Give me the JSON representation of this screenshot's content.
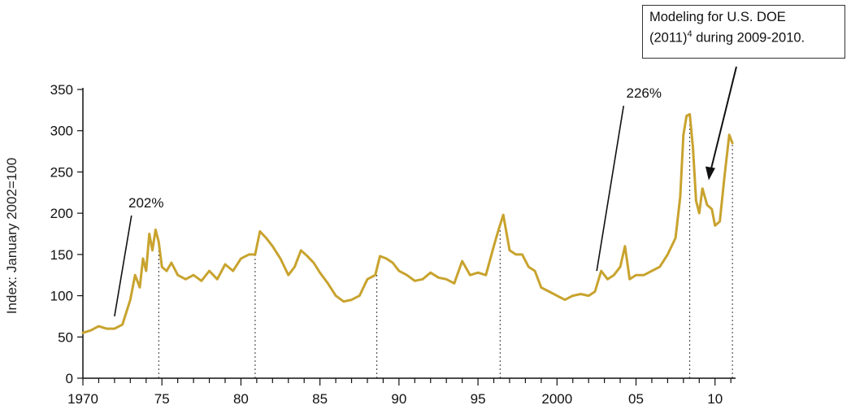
{
  "note": {
    "line1": "Modeling for U.S. DOE",
    "line2_pre": "(2011)",
    "line2_sup": "4",
    "line2_post": " during 2009-2010."
  },
  "colors": {
    "series": "#C8A32E",
    "axis": "#111111"
  },
  "chart_data": {
    "type": "line",
    "title": "",
    "xlabel": "",
    "ylabel": "Index: January 2002=100",
    "xlim": [
      1970,
      2011.3
    ],
    "ylim": [
      0,
      350
    ],
    "y_ticks": [
      0,
      50,
      100,
      150,
      200,
      250,
      300,
      350
    ],
    "x_major_ticks": [
      1970,
      1975,
      1980,
      1985,
      1990,
      1995,
      2000,
      2005,
      2010
    ],
    "x_tick_labels": [
      "1970",
      "75",
      "80",
      "85",
      "90",
      "95",
      "2000",
      "05",
      "10"
    ],
    "grid": false,
    "series": [
      {
        "x": [
          1970.0,
          1970.5,
          1971.0,
          1971.5,
          1972.0,
          1972.5,
          1973.0,
          1973.3,
          1973.6,
          1973.8,
          1974.0,
          1974.2,
          1974.4,
          1974.6,
          1974.8,
          1975.0,
          1975.3,
          1975.6,
          1976.0,
          1976.5,
          1977.0,
          1977.5,
          1978.0,
          1978.5,
          1979.0,
          1979.5,
          1980.0,
          1980.5,
          1980.9,
          1981.2,
          1981.6,
          1982.0,
          1982.5,
          1983.0,
          1983.4,
          1983.8,
          1984.2,
          1984.6,
          1985.0,
          1985.5,
          1986.0,
          1986.5,
          1987.0,
          1987.5,
          1988.0,
          1988.5,
          1988.8,
          1989.2,
          1989.6,
          1990.0,
          1990.5,
          1991.0,
          1991.5,
          1992.0,
          1992.5,
          1993.0,
          1993.5,
          1994.0,
          1994.5,
          1995.0,
          1995.5,
          1996.0,
          1996.3,
          1996.6,
          1997.0,
          1997.4,
          1997.8,
          1998.2,
          1998.6,
          1999.0,
          1999.5,
          2000.0,
          2000.5,
          2001.0,
          2001.5,
          2002.0,
          2002.4,
          2002.8,
          2003.2,
          2003.6,
          2004.0,
          2004.3,
          2004.6,
          2005.0,
          2005.5,
          2006.0,
          2006.5,
          2007.0,
          2007.5,
          2007.8,
          2008.0,
          2008.2,
          2008.4,
          2008.6,
          2008.8,
          2009.0,
          2009.2,
          2009.5,
          2009.8,
          2010.0,
          2010.3,
          2010.6,
          2010.9,
          2011.1
        ],
        "y": [
          55,
          58,
          63,
          60,
          60,
          65,
          95,
          125,
          110,
          145,
          130,
          175,
          155,
          180,
          165,
          135,
          130,
          140,
          125,
          120,
          125,
          118,
          130,
          120,
          138,
          130,
          145,
          150,
          150,
          178,
          170,
          160,
          145,
          125,
          135,
          155,
          148,
          140,
          128,
          115,
          100,
          93,
          95,
          100,
          120,
          125,
          148,
          145,
          140,
          130,
          125,
          118,
          120,
          128,
          122,
          120,
          115,
          142,
          125,
          128,
          125,
          160,
          180,
          198,
          155,
          150,
          150,
          135,
          130,
          110,
          105,
          100,
          95,
          100,
          102,
          100,
          105,
          130,
          120,
          125,
          135,
          160,
          120,
          125,
          125,
          130,
          135,
          150,
          170,
          220,
          295,
          318,
          320,
          280,
          215,
          200,
          230,
          210,
          205,
          185,
          190,
          245,
          295,
          285
        ]
      }
    ],
    "vlines": [
      1974.8,
      1980.9,
      1988.6,
      1996.4,
      2008.4,
      2011.1
    ],
    "annotations": [
      {
        "text": "202%",
        "x": 1974.0,
        "y": 207
      },
      {
        "text": "226%",
        "x": 2005.5,
        "y": 340
      }
    ]
  }
}
